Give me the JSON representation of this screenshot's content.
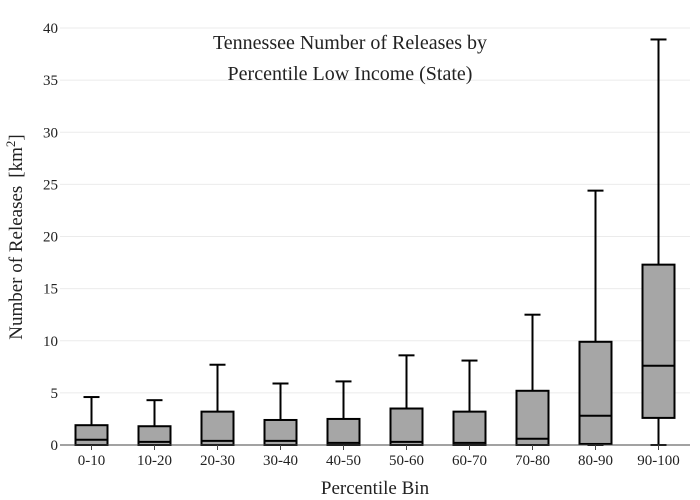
{
  "chart_data": {
    "type": "box",
    "title_lines": [
      "Tennessee Number of Releases by",
      "Percentile Low Income (State)"
    ],
    "xlabel": "Percentile Bin",
    "ylabel": "Number of Releases",
    "ylabel_unit": "[km",
    "ylabel_unit_sup": "2",
    "ylabel_unit_close": "]",
    "ylim": [
      0,
      40
    ],
    "yticks": [
      0,
      5,
      10,
      15,
      20,
      25,
      30,
      35,
      40
    ],
    "grid": true,
    "box_color": "#a6a6a6",
    "categories": [
      "0-10",
      "10-20",
      "20-30",
      "30-40",
      "40-50",
      "50-60",
      "60-70",
      "70-80",
      "80-90",
      "90-100"
    ],
    "boxes": [
      {
        "min": 0,
        "q1": 0,
        "median": 0.5,
        "q3": 1.9,
        "max": 4.6
      },
      {
        "min": 0,
        "q1": 0,
        "median": 0.3,
        "q3": 1.8,
        "max": 4.3
      },
      {
        "min": 0,
        "q1": 0,
        "median": 0.4,
        "q3": 3.2,
        "max": 7.7
      },
      {
        "min": 0,
        "q1": 0,
        "median": 0.4,
        "q3": 2.4,
        "max": 5.9
      },
      {
        "min": 0,
        "q1": 0,
        "median": 0.2,
        "q3": 2.5,
        "max": 6.1
      },
      {
        "min": 0,
        "q1": 0,
        "median": 0.3,
        "q3": 3.5,
        "max": 8.6
      },
      {
        "min": 0,
        "q1": 0,
        "median": 0.2,
        "q3": 3.2,
        "max": 8.1
      },
      {
        "min": 0,
        "q1": 0,
        "median": 0.6,
        "q3": 5.2,
        "max": 12.5
      },
      {
        "min": 0,
        "q1": 0.1,
        "median": 2.8,
        "q3": 9.9,
        "max": 24.4
      },
      {
        "min": 0,
        "q1": 2.6,
        "median": 7.6,
        "q3": 17.3,
        "max": 38.9
      }
    ]
  }
}
